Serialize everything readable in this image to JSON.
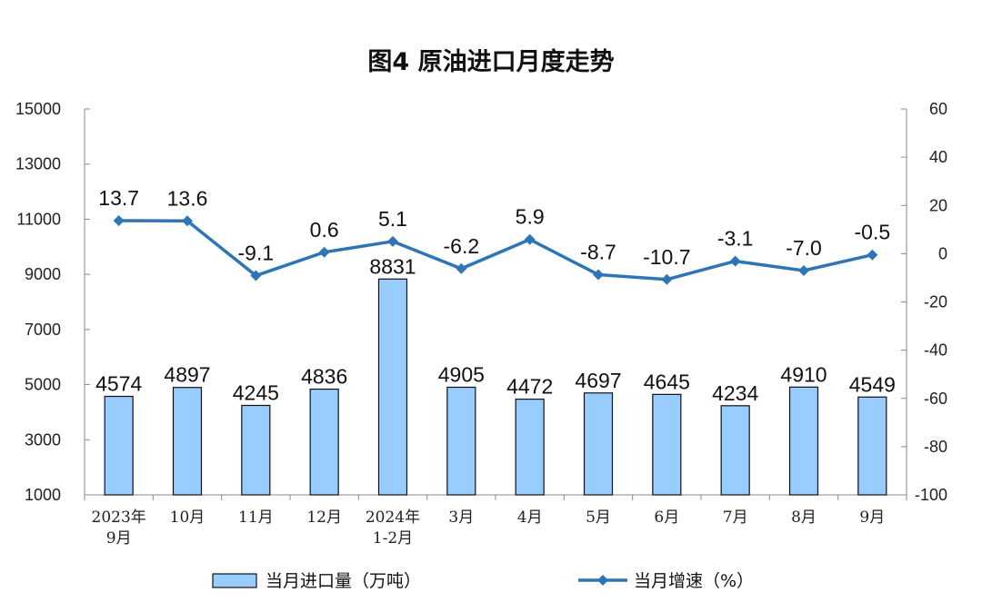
{
  "chart_data": {
    "type": "bar+line",
    "title": "图4  原油进口月度走势",
    "categories": [
      [
        "2023年",
        "9月"
      ],
      [
        "10月"
      ],
      [
        "11月"
      ],
      [
        "12月"
      ],
      [
        "2024年",
        "1-2月"
      ],
      [
        "3月"
      ],
      [
        "4月"
      ],
      [
        "5月"
      ],
      [
        "6月"
      ],
      [
        "7月"
      ],
      [
        "8月"
      ],
      [
        "9月"
      ]
    ],
    "series": [
      {
        "name": "当月进口量（万吨）",
        "type": "bar",
        "axis": "left",
        "color": "#99ccff",
        "values": [
          4574,
          4897,
          4245,
          4836,
          8831,
          4905,
          4472,
          4697,
          4645,
          4234,
          4910,
          4549
        ]
      },
      {
        "name": "当月增速（%）",
        "type": "line",
        "axis": "right",
        "color": "#2e75b6",
        "values": [
          13.7,
          13.6,
          -9.1,
          0.6,
          5.1,
          -6.2,
          5.9,
          -8.7,
          -10.7,
          -3.1,
          -7.0,
          -0.5
        ],
        "labels": [
          "13.7",
          "13.6",
          "-9.1",
          "0.6",
          "5.1",
          "-6.2",
          "5.9",
          "-8.7",
          "-10.7",
          "-3.1",
          "-7.0",
          "-0.5"
        ]
      }
    ],
    "y_left": {
      "range": [
        1000,
        15000
      ],
      "ticks": [
        1000,
        3000,
        5000,
        7000,
        9000,
        11000,
        13000,
        15000
      ]
    },
    "y_right": {
      "range": [
        -100,
        60
      ],
      "ticks": [
        -100,
        -80,
        -60,
        -40,
        -20,
        0,
        20,
        40,
        60
      ]
    },
    "legend_position": "bottom"
  }
}
